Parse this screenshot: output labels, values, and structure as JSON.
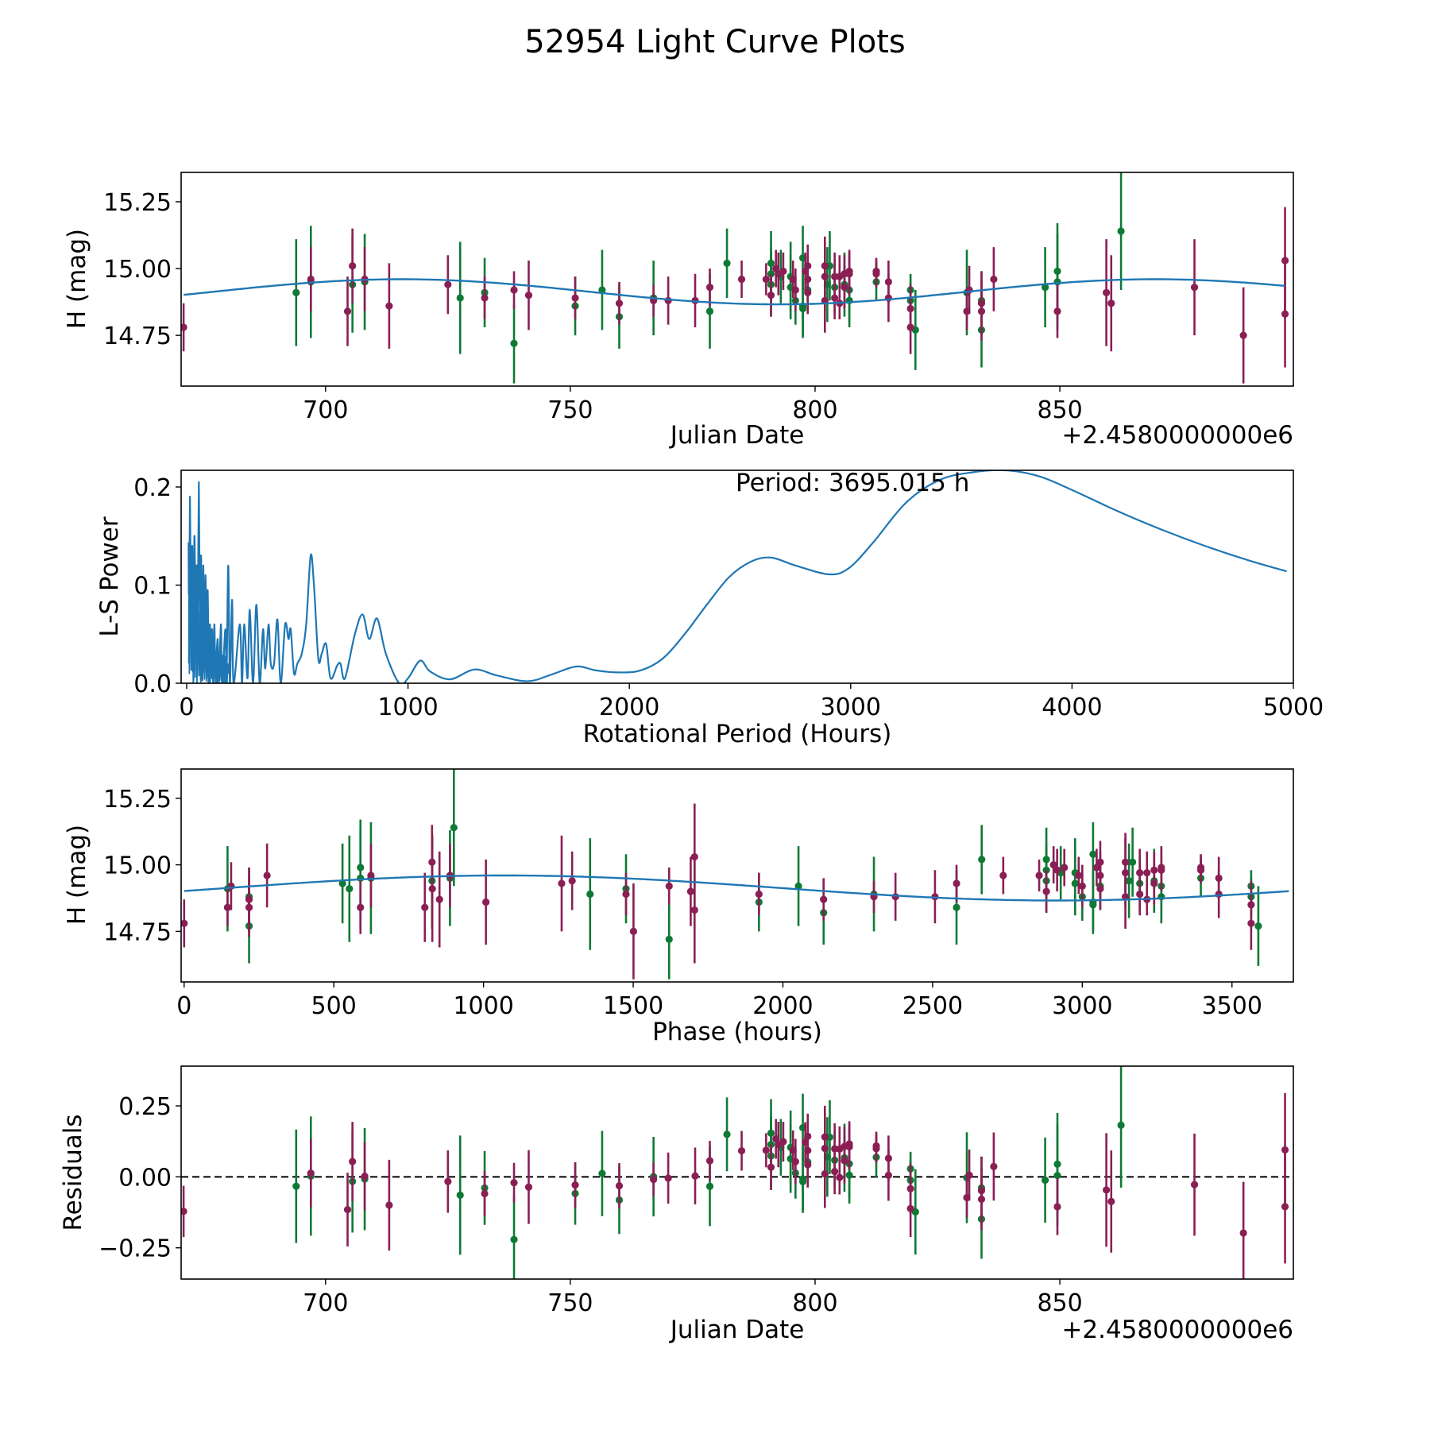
{
  "chart_data": {
    "title": "52954 Light Curve Plots",
    "colors": {
      "band_green": "#0f7a35",
      "band_magenta": "#8a1f55",
      "model_line": "#1f77b4",
      "zero_line": "#000000"
    },
    "model": {
      "type": "sinusoid",
      "period_hours": 3695.015,
      "mean_mag": 14.913,
      "amplitude_mag": 0.047,
      "max_brightness_jd_offset": 715.5
    },
    "observations": [
      {
        "jd": 671.0,
        "mag": 14.78,
        "err": 0.09,
        "band": "magenta"
      },
      {
        "jd": 694.0,
        "mag": 14.91,
        "err": 0.2,
        "band": "green"
      },
      {
        "jd": 697.0,
        "mag": 14.95,
        "err": 0.21,
        "band": "green"
      },
      {
        "jd": 697.0,
        "mag": 14.96,
        "err": 0.12,
        "band": "magenta"
      },
      {
        "jd": 704.5,
        "mag": 14.84,
        "err": 0.13,
        "band": "magenta"
      },
      {
        "jd": 705.5,
        "mag": 14.94,
        "err": 0.18,
        "band": "green"
      },
      {
        "jd": 705.5,
        "mag": 15.01,
        "err": 0.14,
        "band": "magenta"
      },
      {
        "jd": 708.0,
        "mag": 14.95,
        "err": 0.18,
        "band": "green"
      },
      {
        "jd": 708.0,
        "mag": 14.96,
        "err": 0.12,
        "band": "magenta"
      },
      {
        "jd": 713.0,
        "mag": 14.86,
        "err": 0.16,
        "band": "magenta"
      },
      {
        "jd": 725.0,
        "mag": 14.94,
        "err": 0.11,
        "band": "magenta"
      },
      {
        "jd": 727.5,
        "mag": 14.89,
        "err": 0.21,
        "band": "green"
      },
      {
        "jd": 732.5,
        "mag": 14.91,
        "err": 0.13,
        "band": "green"
      },
      {
        "jd": 732.5,
        "mag": 14.89,
        "err": 0.08,
        "band": "magenta"
      },
      {
        "jd": 738.5,
        "mag": 14.72,
        "err": 0.15,
        "band": "green"
      },
      {
        "jd": 738.5,
        "mag": 14.92,
        "err": 0.07,
        "band": "magenta"
      },
      {
        "jd": 741.5,
        "mag": 14.9,
        "err": 0.13,
        "band": "magenta"
      },
      {
        "jd": 751.0,
        "mag": 14.86,
        "err": 0.11,
        "band": "green"
      },
      {
        "jd": 751.0,
        "mag": 14.89,
        "err": 0.08,
        "band": "magenta"
      },
      {
        "jd": 756.5,
        "mag": 14.92,
        "err": 0.15,
        "band": "green"
      },
      {
        "jd": 760.0,
        "mag": 14.82,
        "err": 0.12,
        "band": "green"
      },
      {
        "jd": 760.0,
        "mag": 14.87,
        "err": 0.08,
        "band": "magenta"
      },
      {
        "jd": 767.0,
        "mag": 14.89,
        "err": 0.14,
        "band": "green"
      },
      {
        "jd": 767.0,
        "mag": 14.88,
        "err": 0.06,
        "band": "magenta"
      },
      {
        "jd": 770.0,
        "mag": 14.88,
        "err": 0.09,
        "band": "magenta"
      },
      {
        "jd": 775.5,
        "mag": 14.88,
        "err": 0.1,
        "band": "magenta"
      },
      {
        "jd": 778.5,
        "mag": 14.93,
        "err": 0.07,
        "band": "magenta"
      },
      {
        "jd": 778.5,
        "mag": 14.84,
        "err": 0.14,
        "band": "green"
      },
      {
        "jd": 782.0,
        "mag": 15.02,
        "err": 0.13,
        "band": "green"
      },
      {
        "jd": 785.0,
        "mag": 14.96,
        "err": 0.07,
        "band": "magenta"
      },
      {
        "jd": 790.0,
        "mag": 14.96,
        "err": 0.06,
        "band": "magenta"
      },
      {
        "jd": 791.0,
        "mag": 15.02,
        "err": 0.12,
        "band": "green"
      },
      {
        "jd": 791.0,
        "mag": 14.98,
        "err": 0.1,
        "band": "green"
      },
      {
        "jd": 791.0,
        "mag": 14.94,
        "err": 0.12,
        "band": "green"
      },
      {
        "jd": 791.0,
        "mag": 14.9,
        "err": 0.08,
        "band": "magenta"
      },
      {
        "jd": 792.0,
        "mag": 15.0,
        "err": 0.07,
        "band": "magenta"
      },
      {
        "jd": 792.5,
        "mag": 14.98,
        "err": 0.08,
        "band": "magenta"
      },
      {
        "jd": 793.0,
        "mag": 14.97,
        "err": 0.1,
        "band": "green"
      },
      {
        "jd": 793.5,
        "mag": 14.99,
        "err": 0.07,
        "band": "magenta"
      },
      {
        "jd": 795.0,
        "mag": 14.97,
        "err": 0.13,
        "band": "green"
      },
      {
        "jd": 795.0,
        "mag": 14.93,
        "err": 0.12,
        "band": "green"
      },
      {
        "jd": 795.5,
        "mag": 14.96,
        "err": 0.07,
        "band": "magenta"
      },
      {
        "jd": 796.0,
        "mag": 14.88,
        "err": 0.09,
        "band": "green"
      },
      {
        "jd": 796.0,
        "mag": 14.92,
        "err": 0.08,
        "band": "magenta"
      },
      {
        "jd": 797.5,
        "mag": 15.04,
        "err": 0.12,
        "band": "green"
      },
      {
        "jd": 797.5,
        "mag": 14.86,
        "err": 0.12,
        "band": "green"
      },
      {
        "jd": 797.5,
        "mag": 14.85,
        "err": 0.1,
        "band": "green"
      },
      {
        "jd": 798.0,
        "mag": 14.99,
        "err": 0.07,
        "band": "magenta"
      },
      {
        "jd": 798.5,
        "mag": 15.01,
        "err": 0.08,
        "band": "magenta"
      },
      {
        "jd": 798.5,
        "mag": 14.96,
        "err": 0.09,
        "band": "magenta"
      },
      {
        "jd": 798.5,
        "mag": 14.92,
        "err": 0.09,
        "band": "green"
      },
      {
        "jd": 798.5,
        "mag": 14.91,
        "err": 0.08,
        "band": "magenta"
      },
      {
        "jd": 802.0,
        "mag": 15.01,
        "err": 0.11,
        "band": "magenta"
      },
      {
        "jd": 802.0,
        "mag": 14.97,
        "err": 0.13,
        "band": "magenta"
      },
      {
        "jd": 802.0,
        "mag": 14.88,
        "err": 0.12,
        "band": "magenta"
      },
      {
        "jd": 802.5,
        "mag": 14.94,
        "err": 0.14,
        "band": "green"
      },
      {
        "jd": 803.0,
        "mag": 15.01,
        "err": 0.13,
        "band": "green"
      },
      {
        "jd": 804.0,
        "mag": 14.97,
        "err": 0.09,
        "band": "magenta"
      },
      {
        "jd": 804.0,
        "mag": 14.93,
        "err": 0.1,
        "band": "green"
      },
      {
        "jd": 804.0,
        "mag": 14.89,
        "err": 0.08,
        "band": "magenta"
      },
      {
        "jd": 805.0,
        "mag": 14.97,
        "err": 0.08,
        "band": "magenta"
      },
      {
        "jd": 805.0,
        "mag": 14.87,
        "err": 0.06,
        "band": "magenta"
      },
      {
        "jd": 806.0,
        "mag": 14.98,
        "err": 0.07,
        "band": "magenta"
      },
      {
        "jd": 806.0,
        "mag": 14.94,
        "err": 0.12,
        "band": "green"
      },
      {
        "jd": 806.0,
        "mag": 14.93,
        "err": 0.08,
        "band": "magenta"
      },
      {
        "jd": 807.0,
        "mag": 14.99,
        "err": 0.08,
        "band": "magenta"
      },
      {
        "jd": 807.0,
        "mag": 14.98,
        "err": 0.08,
        "band": "magenta"
      },
      {
        "jd": 807.0,
        "mag": 14.92,
        "err": 0.12,
        "band": "green"
      },
      {
        "jd": 807.0,
        "mag": 14.88,
        "err": 0.1,
        "band": "green"
      },
      {
        "jd": 812.5,
        "mag": 14.99,
        "err": 0.05,
        "band": "magenta"
      },
      {
        "jd": 812.5,
        "mag": 14.98,
        "err": 0.05,
        "band": "magenta"
      },
      {
        "jd": 812.5,
        "mag": 14.95,
        "err": 0.07,
        "band": "green"
      },
      {
        "jd": 815.0,
        "mag": 14.95,
        "err": 0.08,
        "band": "magenta"
      },
      {
        "jd": 815.0,
        "mag": 14.89,
        "err": 0.09,
        "band": "magenta"
      },
      {
        "jd": 819.5,
        "mag": 14.92,
        "err": 0.06,
        "band": "green"
      },
      {
        "jd": 819.5,
        "mag": 14.88,
        "err": 0.07,
        "band": "green"
      },
      {
        "jd": 819.5,
        "mag": 14.85,
        "err": 0.09,
        "band": "magenta"
      },
      {
        "jd": 819.5,
        "mag": 14.78,
        "err": 0.1,
        "band": "magenta"
      },
      {
        "jd": 820.5,
        "mag": 14.77,
        "err": 0.15,
        "band": "green"
      },
      {
        "jd": 831.0,
        "mag": 14.91,
        "err": 0.16,
        "band": "green"
      },
      {
        "jd": 831.0,
        "mag": 14.84,
        "err": 0.07,
        "band": "magenta"
      },
      {
        "jd": 831.5,
        "mag": 14.92,
        "err": 0.09,
        "band": "magenta"
      },
      {
        "jd": 834.0,
        "mag": 14.88,
        "err": 0.11,
        "band": "green"
      },
      {
        "jd": 834.0,
        "mag": 14.87,
        "err": 0.12,
        "band": "magenta"
      },
      {
        "jd": 834.0,
        "mag": 14.84,
        "err": 0.11,
        "band": "magenta"
      },
      {
        "jd": 834.0,
        "mag": 14.77,
        "err": 0.14,
        "band": "green"
      },
      {
        "jd": 836.5,
        "mag": 14.96,
        "err": 0.12,
        "band": "magenta"
      },
      {
        "jd": 847.0,
        "mag": 14.93,
        "err": 0.15,
        "band": "green"
      },
      {
        "jd": 849.5,
        "mag": 14.99,
        "err": 0.18,
        "band": "green"
      },
      {
        "jd": 849.5,
        "mag": 14.95,
        "err": 0.18,
        "band": "green"
      },
      {
        "jd": 849.5,
        "mag": 14.84,
        "err": 0.1,
        "band": "magenta"
      },
      {
        "jd": 859.5,
        "mag": 14.91,
        "err": 0.2,
        "band": "magenta"
      },
      {
        "jd": 860.5,
        "mag": 14.87,
        "err": 0.18,
        "band": "magenta"
      },
      {
        "jd": 862.5,
        "mag": 15.14,
        "err": 0.22,
        "band": "green"
      },
      {
        "jd": 877.5,
        "mag": 14.93,
        "err": 0.18,
        "band": "magenta"
      },
      {
        "jd": 887.5,
        "mag": 14.75,
        "err": 0.18,
        "band": "magenta"
      },
      {
        "jd": 896.0,
        "mag": 15.03,
        "err": 0.2,
        "band": "magenta"
      },
      {
        "jd": 896.0,
        "mag": 14.83,
        "err": 0.2,
        "band": "magenta"
      }
    ],
    "periodogram": {
      "type": "line",
      "peak_points": [
        [
          10,
          0.02
        ],
        [
          15,
          0.19
        ],
        [
          20,
          0.05
        ],
        [
          25,
          0.14
        ],
        [
          30,
          0.06
        ],
        [
          35,
          0.15
        ],
        [
          40,
          0.08
        ],
        [
          45,
          0.12
        ],
        [
          50,
          0.06
        ],
        [
          55,
          0.205
        ],
        [
          60,
          0.05
        ],
        [
          65,
          0.13
        ],
        [
          70,
          0.02
        ],
        [
          75,
          0.12
        ],
        [
          80,
          0.01
        ],
        [
          85,
          0.11
        ],
        [
          90,
          0.03
        ],
        [
          95,
          0.095
        ],
        [
          100,
          0.01
        ],
        [
          105,
          0.06
        ],
        [
          110,
          0.02
        ],
        [
          115,
          0.055
        ],
        [
          120,
          0.0
        ],
        [
          125,
          0.06
        ],
        [
          130,
          0.01
        ],
        [
          140,
          0.045
        ],
        [
          145,
          0.0
        ],
        [
          155,
          0.06
        ],
        [
          160,
          0.0
        ],
        [
          175,
          0.055
        ],
        [
          180,
          0.0
        ],
        [
          188,
          0.12
        ],
        [
          195,
          0.0
        ],
        [
          205,
          0.085
        ],
        [
          212,
          0.0
        ],
        [
          240,
          0.06
        ],
        [
          250,
          0.0
        ],
        [
          260,
          0.06
        ],
        [
          275,
          0.005
        ],
        [
          285,
          0.075
        ],
        [
          300,
          0.0
        ],
        [
          315,
          0.08
        ],
        [
          330,
          0.0
        ],
        [
          345,
          0.055
        ],
        [
          355,
          0.015
        ],
        [
          370,
          0.06
        ],
        [
          380,
          0.02
        ],
        [
          395,
          0.02
        ],
        [
          410,
          0.065
        ],
        [
          425,
          0.0
        ],
        [
          445,
          0.06
        ],
        [
          460,
          0.045
        ],
        [
          470,
          0.055
        ],
        [
          485,
          0.01
        ],
        [
          500,
          0.02
        ],
        [
          520,
          0.03
        ],
        [
          540,
          0.06
        ],
        [
          560,
          0.13
        ],
        [
          575,
          0.1
        ],
        [
          595,
          0.025
        ],
        [
          610,
          0.03
        ],
        [
          630,
          0.04
        ],
        [
          650,
          0.005
        ],
        [
          680,
          0.018
        ],
        [
          695,
          0.02
        ],
        [
          715,
          0.005
        ],
        [
          760,
          0.05
        ],
        [
          795,
          0.07
        ],
        [
          825,
          0.045
        ],
        [
          860,
          0.066
        ],
        [
          900,
          0.03
        ],
        [
          960,
          0.0
        ],
        [
          1000,
          0.005
        ],
        [
          1055,
          0.023
        ],
        [
          1100,
          0.012
        ],
        [
          1190,
          0.004
        ],
        [
          1300,
          0.014
        ],
        [
          1400,
          0.008
        ],
        [
          1540,
          0.002
        ],
        [
          1650,
          0.009
        ],
        [
          1760,
          0.017
        ],
        [
          1850,
          0.013
        ],
        [
          1950,
          0.011
        ],
        [
          2050,
          0.013
        ],
        [
          2150,
          0.025
        ],
        [
          2250,
          0.05
        ],
        [
          2350,
          0.08
        ],
        [
          2450,
          0.108
        ],
        [
          2550,
          0.124
        ],
        [
          2640,
          0.128
        ],
        [
          2750,
          0.12
        ],
        [
          2900,
          0.111
        ],
        [
          2990,
          0.117
        ],
        [
          3100,
          0.143
        ],
        [
          3250,
          0.184
        ],
        [
          3400,
          0.207
        ],
        [
          3550,
          0.215
        ],
        [
          3700,
          0.217
        ],
        [
          3850,
          0.211
        ],
        [
          4000,
          0.197
        ],
        [
          4200,
          0.176
        ],
        [
          4400,
          0.157
        ],
        [
          4600,
          0.14
        ],
        [
          4800,
          0.125
        ],
        [
          4970,
          0.114
        ]
      ],
      "annotation": "Period: 3695.015 h",
      "best_period_hours": 3695.015,
      "xlabel": "Rotational Period (Hours)",
      "ylabel": "L-S Power",
      "xlim": [
        -25,
        5000
      ],
      "ylim": [
        0,
        0.217
      ],
      "xticks": [
        "0",
        "1000",
        "2000",
        "3000",
        "4000",
        "5000"
      ],
      "yticks": [
        "0.0",
        "0.1",
        "0.2"
      ]
    },
    "panels": [
      {
        "id": "light-curve",
        "type": "scatter",
        "xlabel": "Julian Date",
        "ylabel": "H (mag)",
        "offset_label": "+2.4580000000e6",
        "xlim": [
          670.5,
          897.7
        ],
        "ylim": [
          14.56,
          15.36
        ],
        "xticks": [
          "700",
          "750",
          "800",
          "850"
        ],
        "xtick_values": [
          700,
          750,
          800,
          850
        ],
        "yticks": [
          "14.75",
          "15.00",
          "15.25"
        ],
        "ytick_values": [
          14.75,
          15.0,
          15.25
        ]
      },
      {
        "id": "periodogram",
        "type": "line"
      },
      {
        "id": "phase-folded",
        "type": "scatter",
        "xlabel": "Phase (hours)",
        "ylabel": "H (mag)",
        "xlim": [
          -10,
          3705
        ],
        "ylim": [
          14.56,
          15.36
        ],
        "xticks": [
          "0",
          "500",
          "1000",
          "1500",
          "2000",
          "2500",
          "3000",
          "3500"
        ],
        "xtick_values": [
          0,
          500,
          1000,
          1500,
          2000,
          2500,
          3000,
          3500
        ],
        "yticks": [
          "14.75",
          "15.00",
          "15.25"
        ],
        "ytick_values": [
          14.75,
          15.0,
          15.25
        ]
      },
      {
        "id": "residuals",
        "type": "scatter",
        "xlabel": "Julian Date",
        "ylabel": "Residuals",
        "offset_label": "+2.4580000000e6",
        "xlim": [
          670.5,
          897.7
        ],
        "ylim": [
          -0.36,
          0.39
        ],
        "xticks": [
          "700",
          "750",
          "800",
          "850"
        ],
        "xtick_values": [
          700,
          750,
          800,
          850
        ],
        "yticks": [
          "−0.25",
          "0.00",
          "0.25"
        ],
        "ytick_values": [
          -0.25,
          0.0,
          0.25
        ]
      }
    ]
  }
}
